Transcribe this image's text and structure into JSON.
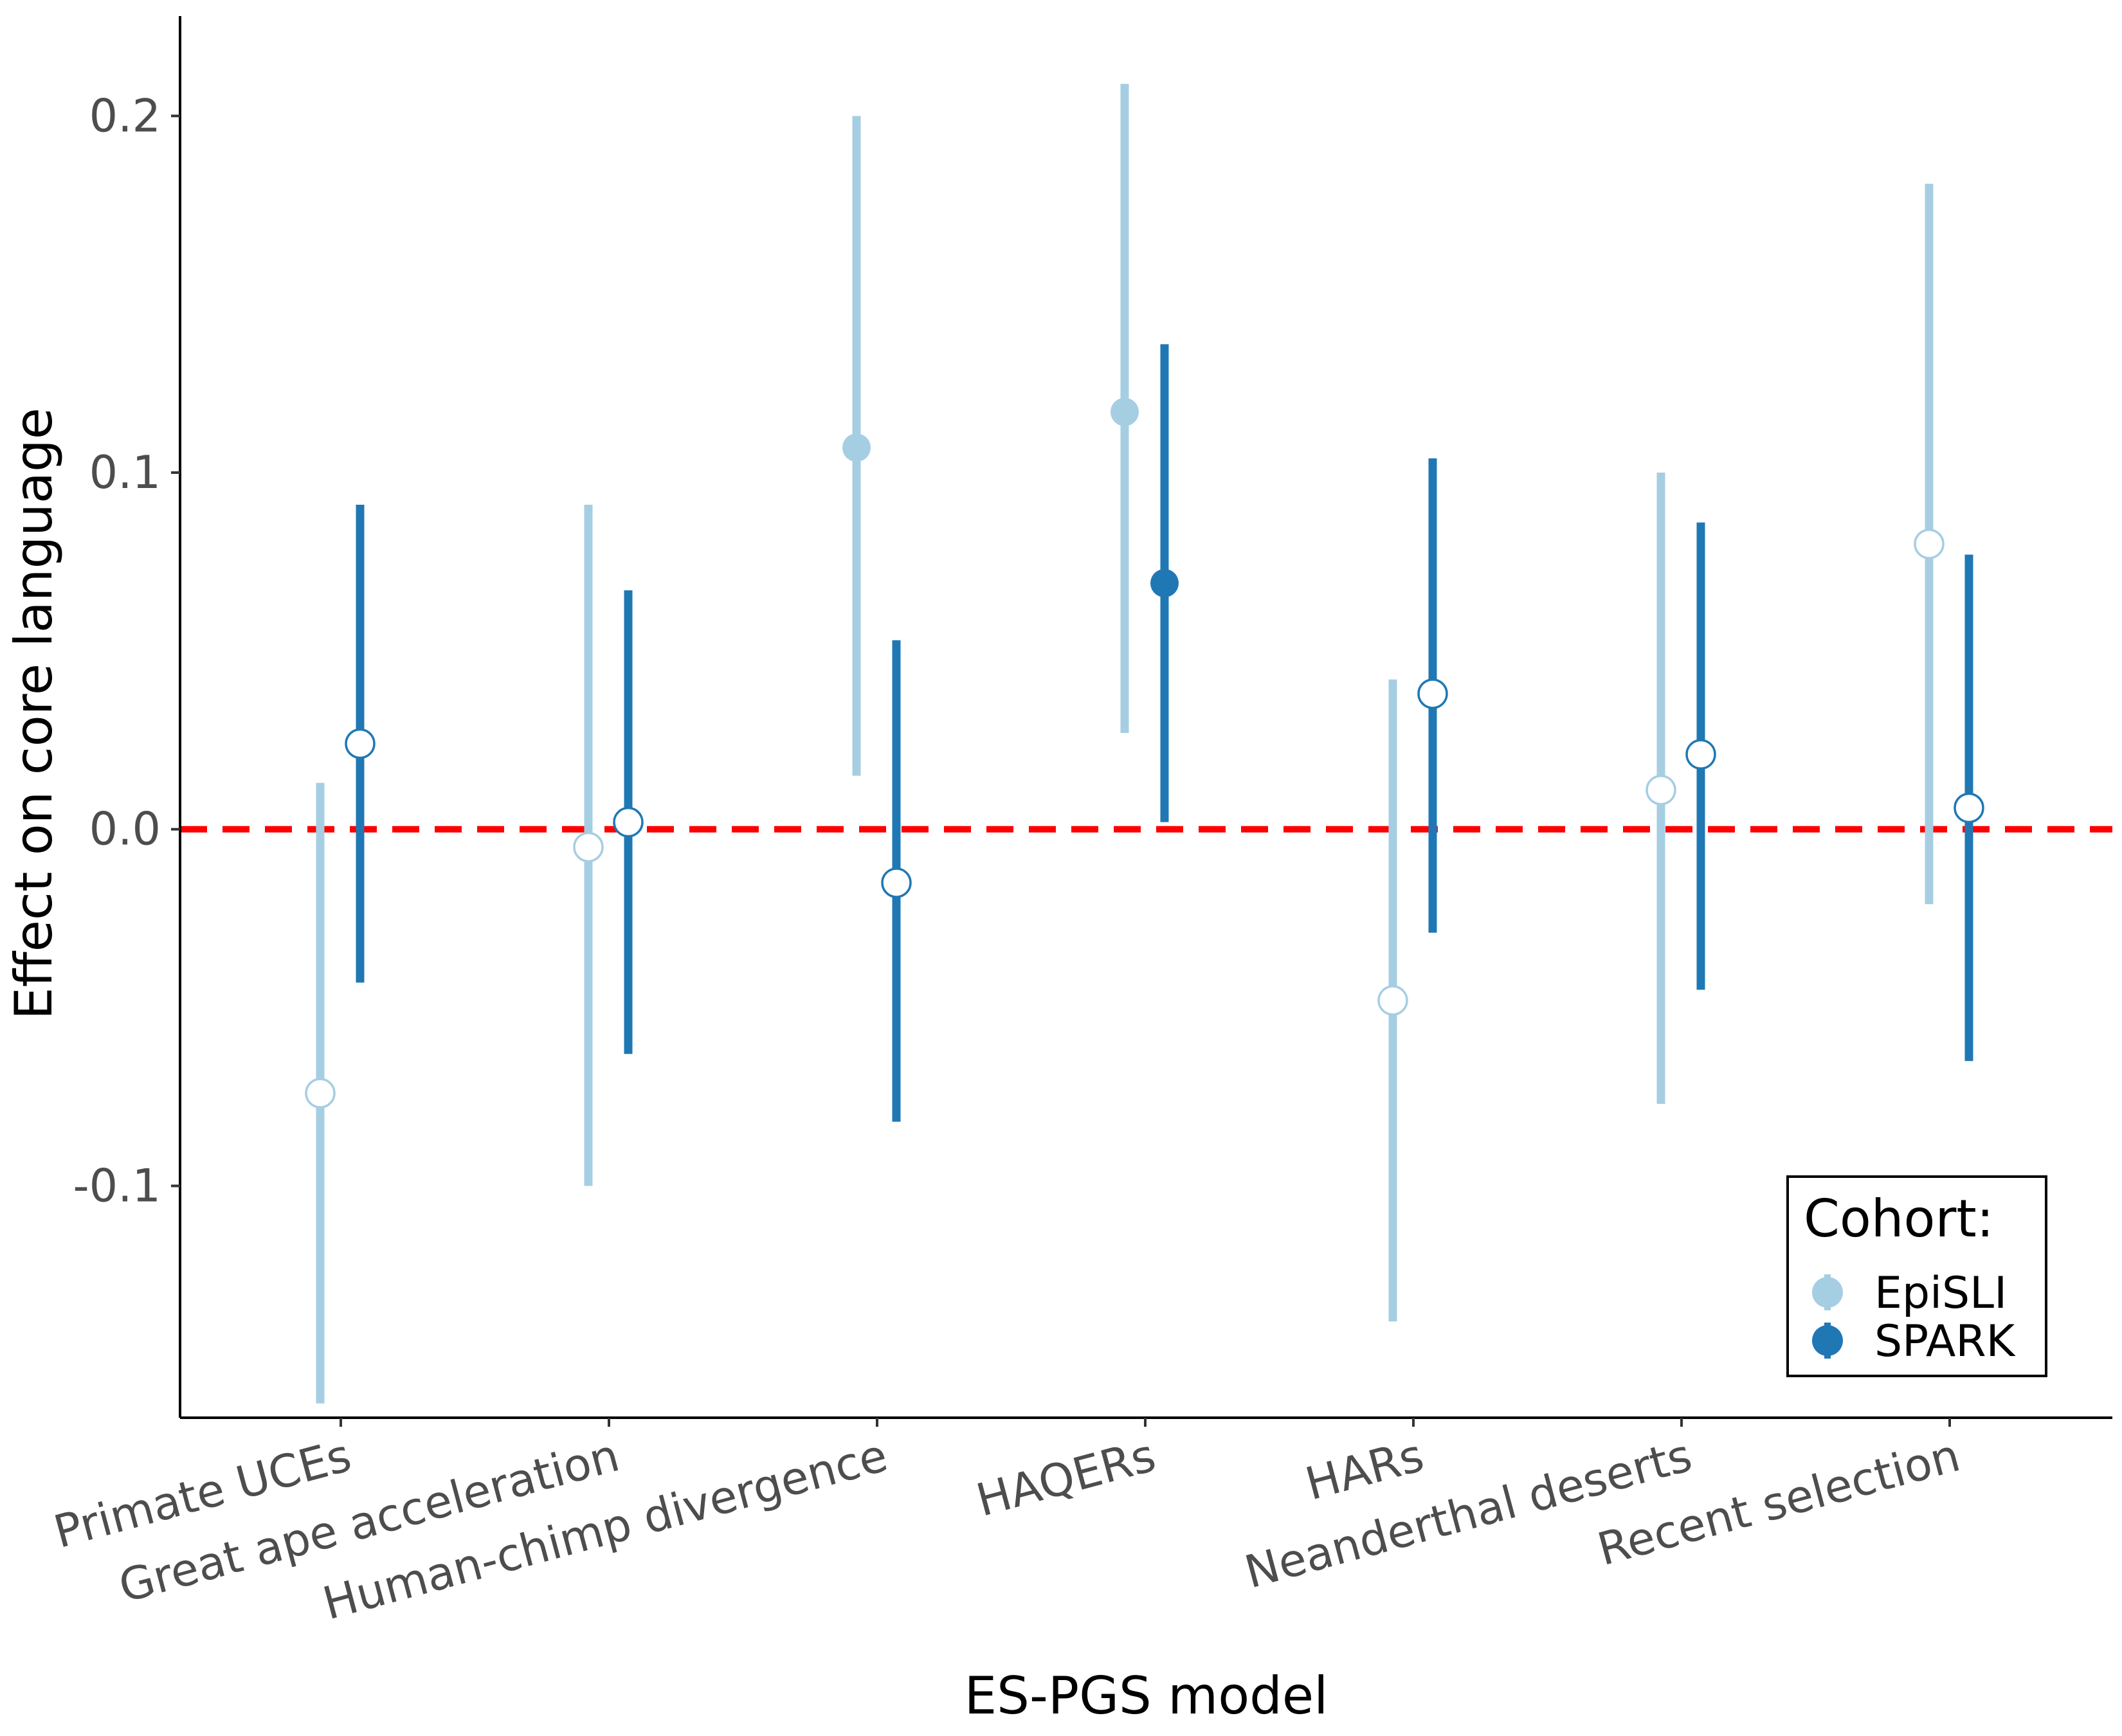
{
  "chart_data": {
    "type": "scatter",
    "subtype": "point-range (estimate with confidence interval)",
    "xlabel": "ES-PGS model",
    "ylabel": "Effect on core language",
    "categories": [
      "Primate UCEs",
      "Great ape acceleration",
      "Human-chimp divergence",
      "HAQERs",
      "HARs",
      "Neanderthal deserts",
      "Recent selection"
    ],
    "y_ticks": [
      {
        "value": 0.2,
        "label": "0.2"
      },
      {
        "value": 0.1,
        "label": "0.1"
      },
      {
        "value": 0.0,
        "label": "0.0"
      },
      {
        "value": -0.1,
        "label": "-0.1"
      }
    ],
    "ylim": [
      -0.165,
      0.228
    ],
    "reference_line": {
      "y": 0,
      "style": "dashed",
      "color": "#ff0000"
    },
    "grid": false,
    "legend": {
      "title": "Cohort:",
      "placement": "bottom-right",
      "entries": [
        "EpiSLI",
        "SPARK"
      ]
    },
    "series": [
      {
        "name": "EpiSLI",
        "color": "#a6cee3",
        "estimates": [
          -0.074,
          -0.005,
          0.107,
          0.117,
          -0.048,
          0.011,
          0.08
        ],
        "lower": [
          -0.161,
          -0.1,
          0.015,
          0.027,
          -0.138,
          -0.077,
          -0.021
        ],
        "upper": [
          0.013,
          0.091,
          0.2,
          0.209,
          0.042,
          0.1,
          0.181
        ],
        "significant": [
          false,
          false,
          true,
          true,
          false,
          false,
          false
        ]
      },
      {
        "name": "SPARK",
        "color": "#1f78b4",
        "estimates": [
          0.024,
          0.002,
          -0.015,
          0.069,
          0.038,
          0.021,
          0.006
        ],
        "lower": [
          -0.043,
          -0.063,
          -0.082,
          0.002,
          -0.029,
          -0.045,
          -0.065
        ],
        "upper": [
          0.091,
          0.067,
          0.053,
          0.136,
          0.104,
          0.086,
          0.077
        ],
        "significant": [
          false,
          false,
          false,
          true,
          false,
          false,
          false
        ]
      }
    ]
  }
}
